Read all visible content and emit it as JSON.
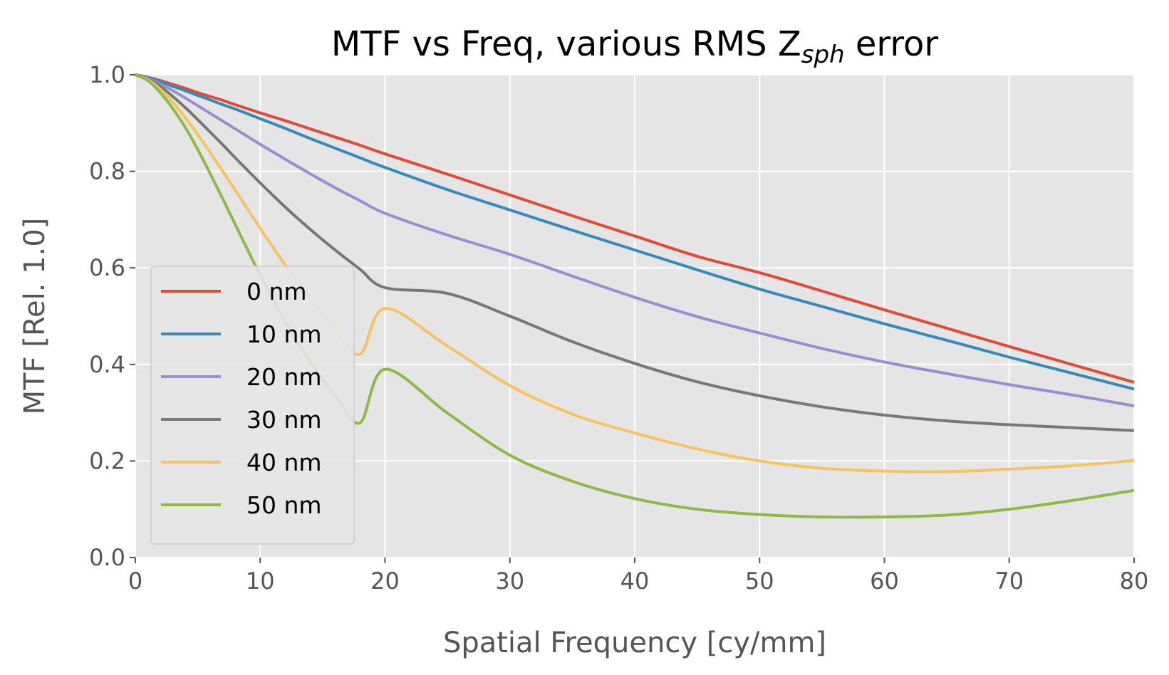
{
  "chart_data": {
    "type": "line",
    "title": "MTF vs Freq, various RMS Z",
    "title_subscript": "sph",
    "title_suffix": " error",
    "xlabel": "Spatial Frequency [cy/mm]",
    "ylabel": "MTF [Rel. 1.0]",
    "xlim": [
      0,
      80
    ],
    "ylim": [
      0,
      1
    ],
    "xticks": [
      0,
      10,
      20,
      30,
      40,
      50,
      60,
      70,
      80
    ],
    "xtick_labels": [
      "0",
      "10",
      "20",
      "30",
      "40",
      "50",
      "60",
      "70",
      "80"
    ],
    "yticks": [
      0,
      0.2,
      0.4,
      0.6,
      0.8,
      1.0
    ],
    "ytick_labels": [
      "0.0",
      "0.2",
      "0.4",
      "0.6",
      "0.8",
      "1.0"
    ],
    "grid": true,
    "style": "ggplot",
    "legend": {
      "position": "center-left"
    },
    "x": [
      0,
      1,
      2,
      3,
      4,
      5,
      6,
      7,
      8,
      10,
      12,
      14,
      16,
      18,
      20,
      25,
      30,
      35,
      40,
      45,
      50,
      55,
      60,
      65,
      70,
      75,
      80
    ],
    "series": [
      {
        "name": "0 nm",
        "color": "#E24A33",
        "values": [
          1.0,
          0.995,
          0.988,
          0.98,
          0.972,
          0.963,
          0.955,
          0.947,
          0.938,
          0.921,
          0.905,
          0.888,
          0.871,
          0.854,
          0.836,
          0.794,
          0.751,
          0.708,
          0.666,
          0.624,
          0.59,
          0.552,
          0.513,
          0.475,
          0.437,
          0.4,
          0.363
        ]
      },
      {
        "name": "10 nm",
        "color": "#348ABD",
        "values": [
          1.0,
          0.995,
          0.986,
          0.976,
          0.967,
          0.957,
          0.948,
          0.938,
          0.929,
          0.909,
          0.889,
          0.868,
          0.848,
          0.828,
          0.808,
          0.762,
          0.72,
          0.678,
          0.637,
          0.596,
          0.556,
          0.52,
          0.484,
          0.45,
          0.415,
          0.382,
          0.349
        ]
      },
      {
        "name": "20 nm",
        "color": "#988ED5",
        "values": [
          1.0,
          0.993,
          0.981,
          0.967,
          0.952,
          0.936,
          0.92,
          0.904,
          0.888,
          0.856,
          0.825,
          0.795,
          0.766,
          0.739,
          0.713,
          0.668,
          0.628,
          0.583,
          0.539,
          0.499,
          0.465,
          0.433,
          0.405,
          0.381,
          0.358,
          0.337,
          0.314
        ]
      },
      {
        "name": "30 nm",
        "color": "#777777",
        "values": [
          1.0,
          0.992,
          0.976,
          0.955,
          0.932,
          0.907,
          0.881,
          0.855,
          0.828,
          0.776,
          0.726,
          0.68,
          0.637,
          0.597,
          0.559,
          0.547,
          0.5,
          0.447,
          0.402,
          0.364,
          0.335,
          0.312,
          0.295,
          0.283,
          0.275,
          0.269,
          0.263
        ]
      },
      {
        "name": "40 nm",
        "color": "#FBC15E",
        "values": [
          1.0,
          0.99,
          0.97,
          0.943,
          0.911,
          0.876,
          0.839,
          0.8,
          0.761,
          0.682,
          0.606,
          0.536,
          0.475,
          0.421,
          0.516,
          0.438,
          0.356,
          0.297,
          0.258,
          0.225,
          0.2,
          0.185,
          0.179,
          0.178,
          0.183,
          0.19,
          0.201
        ]
      },
      {
        "name": "50 nm",
        "color": "#8EBA42",
        "values": [
          1.0,
          0.988,
          0.963,
          0.93,
          0.891,
          0.845,
          0.795,
          0.743,
          0.69,
          0.585,
          0.489,
          0.406,
          0.336,
          0.279,
          0.39,
          0.299,
          0.212,
          0.158,
          0.122,
          0.1,
          0.089,
          0.084,
          0.084,
          0.088,
          0.1,
          0.118,
          0.139
        ]
      }
    ]
  }
}
